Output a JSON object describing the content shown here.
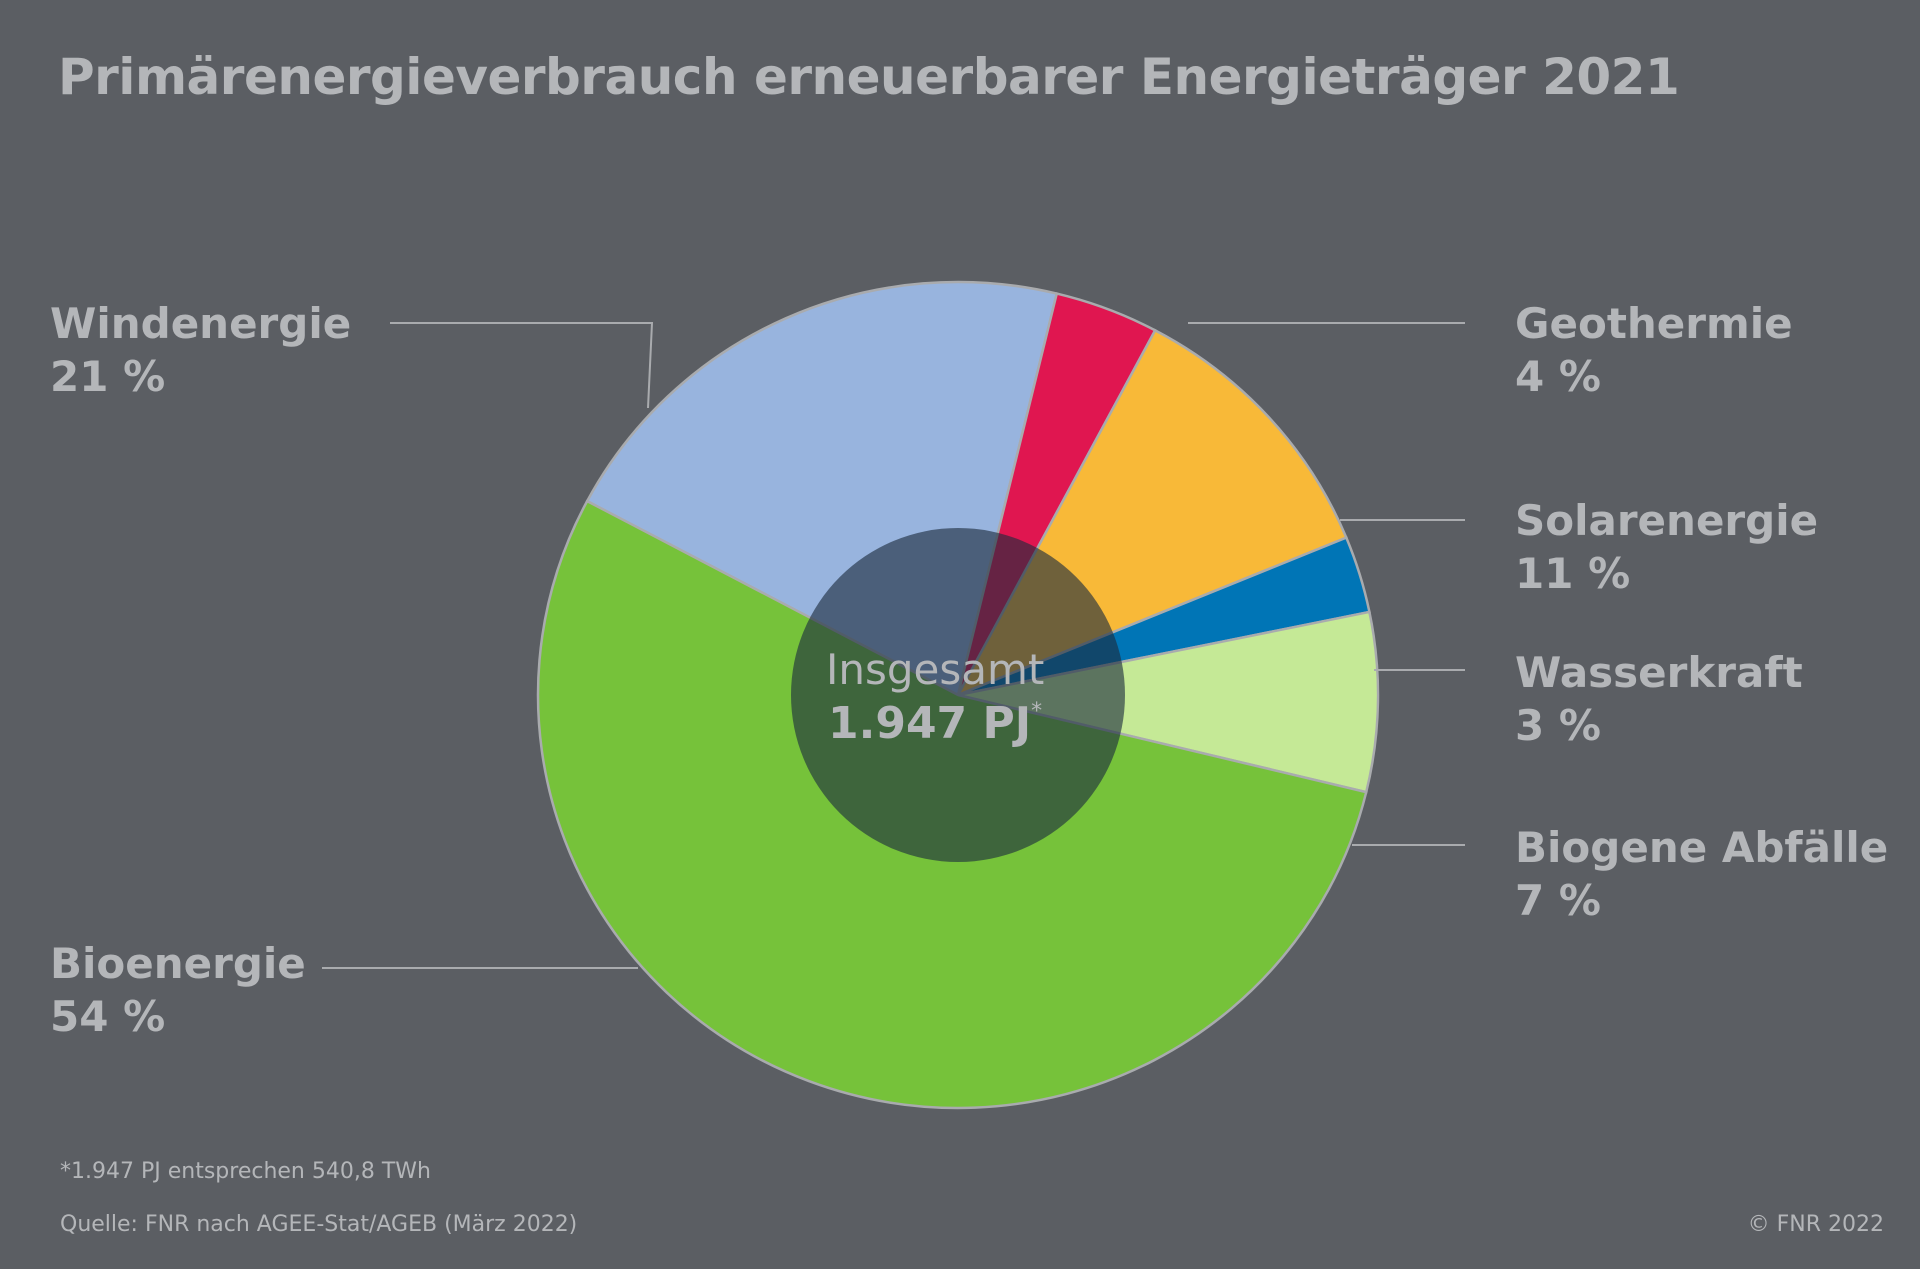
{
  "title": "Primärenergieverbrauch erneuerbarer Energieträger 2021",
  "chart_data": {
    "type": "pie",
    "title": "Primärenergieverbrauch erneuerbarer Energieträger 2021",
    "unit": "%",
    "center_label": "Insgesamt",
    "center_value": "1.947 PJ",
    "center_value_mark": "*",
    "slices": [
      {
        "name": "Windenergie",
        "value": 21,
        "label": "21 %",
        "color": "#98b4de"
      },
      {
        "name": "Geothermie",
        "value": 4,
        "label": "4 %",
        "color": "#e01650"
      },
      {
        "name": "Solarenergie",
        "value": 11,
        "label": "11 %",
        "color": "#f8b938"
      },
      {
        "name": "Wasserkraft",
        "value": 3,
        "label": "3 %",
        "color": "#0075b6"
      },
      {
        "name": "Biogene Abfälle",
        "value": 7,
        "label": "7 %",
        "color": "#c5e996"
      },
      {
        "name": "Bioenergie",
        "value": 54,
        "label": "54 %",
        "color": "#76c23a"
      }
    ]
  },
  "footnote": "*1.947 PJ entsprechen 540,8 TWh",
  "source": "Quelle: FNR nach AGEE-Stat/AGEB (März 2022)",
  "copyright": "© FNR 2022"
}
